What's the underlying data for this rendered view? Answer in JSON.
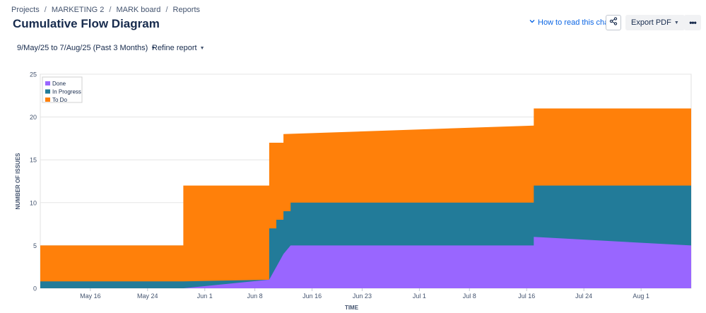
{
  "breadcrumb": [
    "Projects",
    "MARKETING 2",
    "MARK board",
    "Reports"
  ],
  "page_title": "Cumulative Flow Diagram",
  "toolbar": {
    "how_to_label": "How to read this chart",
    "export_label": "Export PDF",
    "share_icon": "share-icon",
    "more_icon": "more-icon"
  },
  "filters": {
    "date_range": "9/May/25 to 7/Aug/25 (Past 3 Months)",
    "refine_label": "Refine report"
  },
  "colors": {
    "done": "#9966ff",
    "in_progress": "#227b99",
    "to_do": "#ff800a",
    "link": "#0c66e4"
  },
  "chart_data": {
    "type": "area",
    "stacked": true,
    "step": true,
    "xlabel": "TIME",
    "ylabel": "NUMBER OF ISSUES",
    "xlim": [
      "2025-05-09",
      "2025-08-08"
    ],
    "ylim": [
      0,
      25
    ],
    "yticks": [
      0,
      5,
      10,
      15,
      20,
      25
    ],
    "xticks": [
      {
        "label": "May 16",
        "date": "2025-05-16"
      },
      {
        "label": "May 24",
        "date": "2025-05-24"
      },
      {
        "label": "Jun 1",
        "date": "2025-06-01"
      },
      {
        "label": "Jun 8",
        "date": "2025-06-08"
      },
      {
        "label": "Jun 16",
        "date": "2025-06-16"
      },
      {
        "label": "Jun 23",
        "date": "2025-06-23"
      },
      {
        "label": "Jul 1",
        "date": "2025-07-01"
      },
      {
        "label": "Jul 8",
        "date": "2025-07-08"
      },
      {
        "label": "Jul 16",
        "date": "2025-07-16"
      },
      {
        "label": "Jul 24",
        "date": "2025-07-24"
      },
      {
        "label": "Aug 1",
        "date": "2025-08-01"
      }
    ],
    "grid": true,
    "legend_position": "top-left",
    "series": [
      {
        "name": "Done",
        "points": [
          [
            "2025-05-09",
            0
          ],
          [
            "2025-05-29",
            0
          ],
          [
            "2025-06-10",
            1
          ],
          [
            "2025-06-11",
            2.5
          ],
          [
            "2025-06-12",
            4
          ],
          [
            "2025-06-13",
            5
          ],
          [
            "2025-07-17",
            5
          ],
          [
            "2025-07-17",
            6
          ],
          [
            "2025-08-08",
            5
          ]
        ]
      },
      {
        "name": "In Progress",
        "points": [
          [
            "2025-05-09",
            0.8
          ],
          [
            "2025-05-29",
            0.8
          ],
          [
            "2025-06-10",
            1
          ],
          [
            "2025-06-10",
            7
          ],
          [
            "2025-06-11",
            7
          ],
          [
            "2025-06-11",
            8
          ],
          [
            "2025-06-12",
            8
          ],
          [
            "2025-06-12",
            9
          ],
          [
            "2025-06-13",
            9
          ],
          [
            "2025-06-13",
            10
          ],
          [
            "2025-07-17",
            10
          ],
          [
            "2025-07-17",
            12
          ],
          [
            "2025-08-08",
            12
          ]
        ]
      },
      {
        "name": "To Do",
        "points": [
          [
            "2025-05-09",
            5
          ],
          [
            "2025-05-29",
            5
          ],
          [
            "2025-05-29",
            12
          ],
          [
            "2025-06-10",
            12
          ],
          [
            "2025-06-10",
            17
          ],
          [
            "2025-06-12",
            17
          ],
          [
            "2025-06-12",
            18
          ],
          [
            "2025-07-17",
            19
          ],
          [
            "2025-07-17",
            21
          ],
          [
            "2025-08-08",
            21
          ]
        ]
      }
    ]
  }
}
